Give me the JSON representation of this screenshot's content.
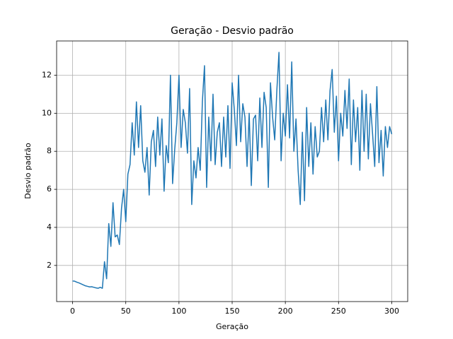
{
  "chart_data": {
    "type": "line",
    "title": "Geração - Desvio padrão",
    "x_label": "Geração",
    "y_label": "Desvio padrão",
    "x": [
      0,
      2,
      4,
      6,
      8,
      10,
      12,
      14,
      16,
      18,
      20,
      22,
      24,
      26,
      28,
      30,
      32,
      34,
      36,
      38,
      40,
      42,
      44,
      46,
      48,
      50,
      52,
      54,
      56,
      58,
      60,
      62,
      64,
      66,
      68,
      70,
      72,
      74,
      76,
      78,
      80,
      82,
      84,
      86,
      88,
      90,
      92,
      94,
      96,
      98,
      100,
      102,
      104,
      106,
      108,
      110,
      112,
      114,
      116,
      118,
      120,
      122,
      124,
      126,
      128,
      130,
      132,
      134,
      136,
      138,
      140,
      142,
      144,
      146,
      148,
      150,
      152,
      154,
      156,
      158,
      160,
      162,
      164,
      166,
      168,
      170,
      172,
      174,
      176,
      178,
      180,
      182,
      184,
      186,
      188,
      190,
      192,
      194,
      196,
      198,
      200,
      202,
      204,
      206,
      208,
      210,
      212,
      214,
      216,
      218,
      220,
      222,
      224,
      226,
      228,
      230,
      232,
      234,
      236,
      238,
      240,
      242,
      244,
      246,
      248,
      250,
      252,
      254,
      256,
      258,
      260,
      262,
      264,
      266,
      268,
      270,
      272,
      274,
      276,
      278,
      280,
      282,
      284,
      286,
      288,
      290,
      292,
      294,
      296,
      298,
      300
    ],
    "series": [
      {
        "name": "Desvio padrão",
        "color": "#1f77b4",
        "values": [
          1.18,
          1.17,
          1.12,
          1.08,
          1.03,
          0.98,
          0.93,
          0.9,
          0.87,
          0.88,
          0.85,
          0.82,
          0.8,
          0.85,
          0.8,
          2.2,
          1.3,
          4.2,
          3.0,
          5.3,
          3.5,
          3.6,
          3.1,
          5.0,
          6.0,
          4.3,
          6.8,
          7.3,
          9.5,
          7.8,
          10.6,
          8.2,
          10.4,
          7.5,
          6.9,
          8.2,
          5.7,
          8.5,
          9.1,
          7.2,
          9.8,
          7.8,
          9.7,
          5.9,
          8.3,
          7.4,
          12.0,
          6.3,
          8.1,
          9.5,
          12.0,
          8.2,
          10.2,
          9.5,
          7.9,
          11.3,
          5.2,
          7.5,
          6.6,
          8.2,
          7.0,
          10.6,
          12.5,
          6.1,
          9.8,
          7.5,
          11.0,
          7.3,
          9.0,
          9.5,
          7.2,
          9.8,
          7.7,
          10.4,
          7.1,
          11.6,
          10.2,
          8.3,
          12.0,
          8.5,
          10.5,
          9.8,
          7.2,
          10.0,
          6.2,
          9.7,
          9.9,
          7.5,
          10.8,
          8.2,
          11.1,
          10.3,
          6.1,
          11.6,
          9.8,
          8.6,
          11.2,
          13.2,
          7.5,
          10.0,
          8.8,
          11.5,
          8.7,
          12.7,
          8.0,
          9.7,
          7.0,
          5.2,
          9.0,
          5.4,
          10.3,
          7.2,
          9.5,
          6.8,
          9.3,
          7.7,
          8.0,
          10.3,
          8.5,
          10.7,
          8.6,
          11.2,
          12.3,
          9.0,
          10.9,
          7.5,
          10.0,
          8.8,
          11.2,
          9.2,
          11.8,
          7.3,
          10.7,
          8.5,
          10.3,
          7.0,
          11.2,
          8.0,
          11.0,
          7.6,
          10.5,
          8.9,
          7.2,
          11.4,
          7.4,
          9.1,
          6.7,
          9.3,
          8.2,
          9.3,
          8.9
        ]
      }
    ],
    "xlim": [
      -15,
      315
    ],
    "ylim": [
      0.1,
      13.8
    ],
    "xticks": [
      0,
      50,
      100,
      150,
      200,
      250,
      300
    ],
    "yticks": [
      2,
      4,
      6,
      8,
      10,
      12
    ],
    "grid": true
  }
}
